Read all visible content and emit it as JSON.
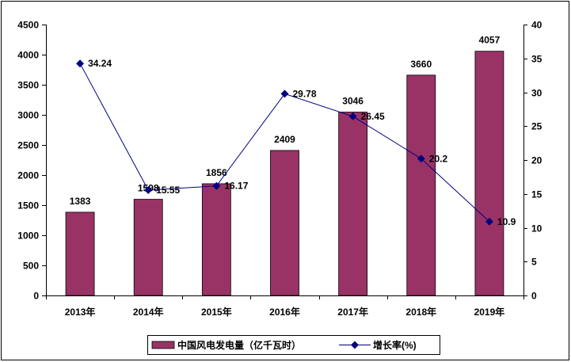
{
  "chart_data": {
    "type": "bar",
    "categories": [
      "2013年",
      "2014年",
      "2015年",
      "2016年",
      "2017年",
      "2018年",
      "2019年"
    ],
    "series": [
      {
        "name": "中国风电发电量（亿千瓦时）",
        "type": "bar",
        "axis": "left",
        "values": [
          1383,
          1598,
          1856,
          2409,
          3046,
          3660,
          4057
        ],
        "labels": [
          "1383",
          "1598",
          "1856",
          "2409",
          "3046",
          "3660",
          "4057"
        ]
      },
      {
        "name": "增长率(%)",
        "type": "line",
        "axis": "right",
        "values": [
          34.24,
          15.55,
          16.17,
          29.78,
          26.45,
          20.2,
          10.9
        ],
        "labels": [
          "34.24",
          "15.55",
          "16.17",
          "29.78",
          "26.45",
          "20.2",
          "10.9"
        ]
      }
    ],
    "y_left": {
      "min": 0,
      "max": 4500,
      "step": 500,
      "ticks": [
        "0",
        "500",
        "1000",
        "1500",
        "2000",
        "2500",
        "3000",
        "3500",
        "4000",
        "4500"
      ]
    },
    "y_right": {
      "min": 0,
      "max": 40,
      "step": 5,
      "ticks": [
        "0",
        "5",
        "10",
        "15",
        "20",
        "25",
        "30",
        "35",
        "40"
      ]
    },
    "grid": false,
    "legend_position": "bottom",
    "colors": {
      "bar": "#993366",
      "line": "#000080",
      "axis": "#000000"
    }
  }
}
